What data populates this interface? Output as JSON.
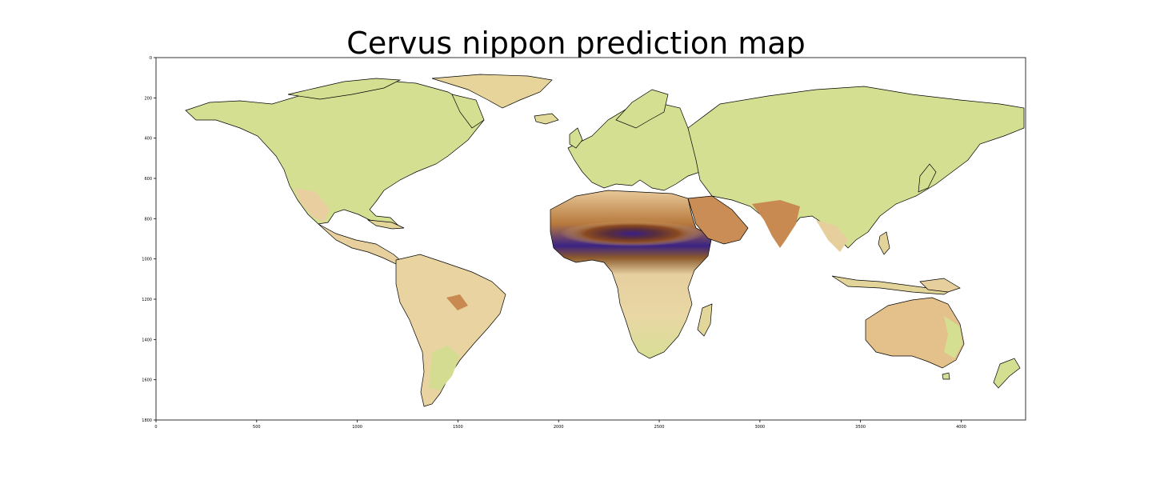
{
  "title": "Cervus nippon prediction map",
  "chart_data": {
    "type": "heatmap",
    "title": "Cervus nippon prediction map",
    "xlabel": "",
    "ylabel": "",
    "xlim": [
      0,
      4320
    ],
    "ylim": [
      1800,
      0
    ],
    "x_ticks": [
      0,
      500,
      1000,
      1500,
      2000,
      2500,
      3000,
      3500,
      4000
    ],
    "y_ticks": [
      0,
      200,
      400,
      600,
      800,
      1000,
      1200,
      1400,
      1600,
      1800
    ],
    "colormap": [
      "#d7e28a",
      "#ecd9a2",
      "#c98d55",
      "#7a3e1a",
      "#2a1a8c"
    ],
    "background_color": "#ffffff",
    "grid": false
  }
}
